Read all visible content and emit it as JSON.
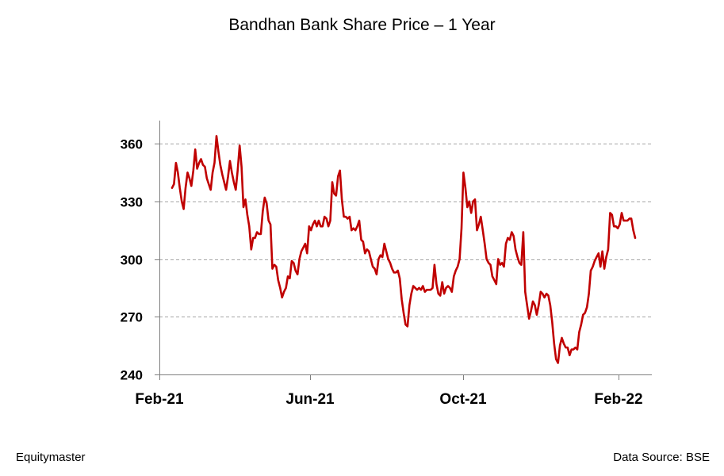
{
  "chart_data": {
    "type": "line",
    "title": "Bandhan Bank Share Price – 1 Year",
    "xlabel": "",
    "ylabel": "",
    "ylim": [
      240,
      372
    ],
    "yticks": [
      240,
      270,
      300,
      330,
      360
    ],
    "x_tick_labels": [
      "Feb-21",
      "Jun-21",
      "Oct-21",
      "Feb-22"
    ],
    "grid": "horizontal-dashed",
    "series": [
      {
        "color": "#c00000",
        "values": [
          337,
          339,
          350,
          345,
          337,
          330,
          326,
          337,
          345,
          342,
          338,
          346,
          357,
          347,
          350,
          352,
          349,
          348,
          342,
          339,
          336,
          345,
          350,
          364,
          356,
          349,
          344,
          340,
          336,
          343,
          351,
          345,
          340,
          336,
          346,
          359,
          348,
          327,
          331,
          323,
          317,
          305,
          311,
          311,
          314,
          313,
          313,
          325,
          332,
          329,
          320,
          318,
          295,
          297,
          296,
          289,
          285,
          280,
          283,
          285,
          291,
          290,
          299,
          298,
          294,
          292,
          300,
          304,
          306,
          308,
          303,
          317,
          315,
          318,
          320,
          317,
          320,
          317,
          317,
          322,
          321,
          317,
          320,
          340,
          334,
          333,
          343,
          346,
          331,
          322,
          322,
          321,
          322,
          315,
          316,
          315,
          317,
          320,
          310,
          309,
          303,
          305,
          304,
          300,
          296,
          295,
          292,
          300,
          302,
          301,
          308,
          304,
          300,
          298,
          295,
          293,
          293,
          294,
          290,
          279,
          272,
          266,
          265,
          276,
          282,
          286,
          285,
          284,
          285,
          284,
          286,
          283,
          284,
          284,
          284,
          285,
          297,
          287,
          282,
          281,
          288,
          282,
          285,
          286,
          285,
          283,
          291,
          294,
          296,
          300,
          316,
          345,
          337,
          327,
          330,
          324,
          330,
          331,
          315,
          318,
          322,
          315,
          308,
          300,
          298,
          297,
          291,
          289,
          287,
          300,
          297,
          298,
          296,
          308,
          311,
          310,
          314,
          312,
          305,
          301,
          298,
          297,
          314,
          283,
          276,
          269,
          273,
          278,
          276,
          271,
          276,
          283,
          282,
          280,
          282,
          281,
          276,
          267,
          256,
          248,
          246,
          255,
          259,
          256,
          254,
          254,
          250,
          253,
          253,
          254,
          253,
          262,
          266,
          271,
          272,
          275,
          282,
          294,
          296,
          299,
          301,
          303,
          296,
          304,
          295,
          301,
          305,
          324,
          323,
          317,
          317,
          316,
          318,
          324,
          320,
          320,
          320,
          321,
          321,
          315,
          311
        ]
      }
    ]
  },
  "footer": {
    "left": "Equitymaster",
    "right": "Data Source: BSE"
  }
}
